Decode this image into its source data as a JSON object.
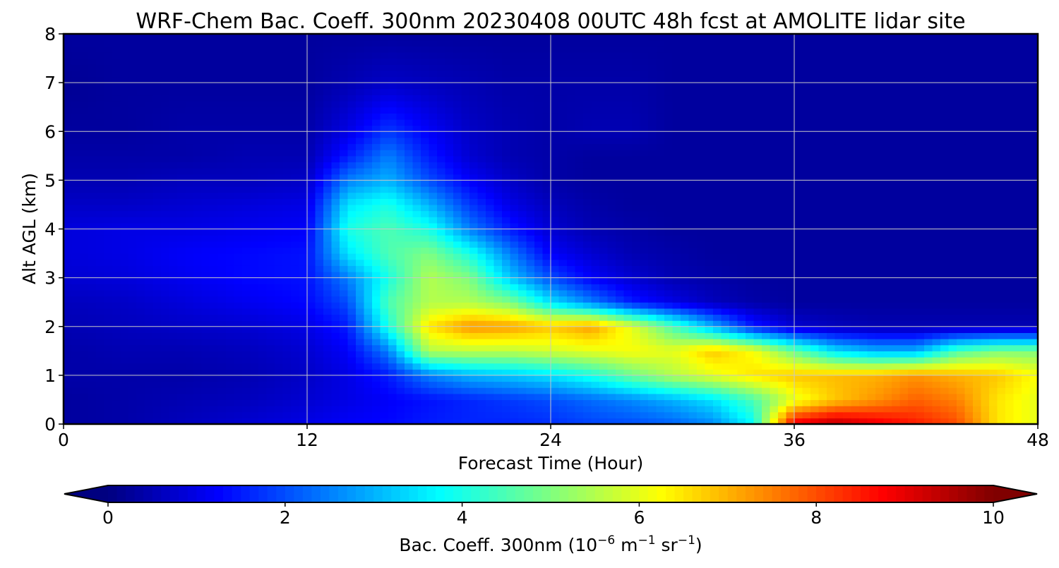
{
  "chart_data": {
    "type": "heatmap",
    "title": "WRF-Chem Bac. Coeff. 300nm  20230408 00UTC 48h fcst at AMOLITE lidar site",
    "xlabel": "Forecast Time (Hour)",
    "ylabel": "Alt AGL (km)",
    "xlim": [
      0,
      48
    ],
    "ylim": [
      0,
      8
    ],
    "x_ticks": [
      "0",
      "12",
      "24",
      "36",
      "48"
    ],
    "y_ticks": [
      "0",
      "1",
      "2",
      "3",
      "4",
      "5",
      "6",
      "7",
      "8"
    ],
    "grid": true,
    "colorbar": {
      "label_main": "Bac. Coeff. 300nm  (10",
      "label_exp1": "−6",
      "label_mid": " m",
      "label_exp2": "−1",
      "label_mid2": " sr",
      "label_exp3": "−1",
      "label_end": ")",
      "range": [
        0,
        10
      ],
      "ticks": [
        "0",
        "2",
        "4",
        "6",
        "8",
        "10"
      ],
      "colormap": "jet",
      "extend": "both"
    },
    "x": [
      0,
      3,
      6,
      9,
      12,
      14,
      16,
      18,
      20,
      22,
      24,
      26,
      28,
      30,
      32,
      34,
      36,
      38,
      40,
      42,
      44,
      46,
      48
    ],
    "y": [
      0,
      0.5,
      1,
      1.5,
      2,
      2.5,
      3,
      3.5,
      4,
      4.5,
      5,
      5.5,
      6,
      7,
      8
    ],
    "values": [
      [
        0.3,
        0.4,
        0.6,
        0.8,
        1.0,
        1.2,
        1.3,
        1.5,
        1.6,
        1.6,
        1.7,
        1.9,
        2.0,
        2.2,
        2.6,
        3.8,
        9.0,
        9.5,
        9.0,
        8.5,
        8.0,
        6.5,
        6.0
      ],
      [
        0.3,
        0.4,
        0.5,
        0.6,
        0.8,
        1.0,
        1.2,
        1.4,
        1.6,
        1.8,
        2.0,
        2.3,
        2.6,
        3.0,
        3.5,
        4.5,
        6.0,
        6.8,
        7.3,
        7.8,
        7.5,
        6.5,
        6.0
      ],
      [
        0.4,
        0.4,
        0.4,
        0.5,
        0.7,
        1.0,
        1.5,
        2.5,
        3.0,
        3.2,
        3.5,
        4.0,
        4.8,
        5.5,
        6.0,
        6.5,
        6.8,
        6.9,
        7.0,
        7.3,
        7.0,
        6.8,
        6.2
      ],
      [
        0.4,
        0.5,
        0.5,
        0.6,
        0.8,
        1.2,
        2.5,
        5.5,
        5.6,
        5.6,
        5.8,
        6.0,
        6.2,
        6.0,
        6.8,
        6.2,
        4.8,
        3.5,
        3.0,
        3.0,
        4.5,
        5.0,
        5.0
      ],
      [
        0.5,
        0.6,
        0.7,
        0.8,
        1.0,
        1.5,
        4.0,
        6.5,
        7.3,
        7.2,
        6.8,
        7.2,
        6.0,
        4.5,
        3.0,
        1.5,
        0.8,
        0.6,
        0.5,
        0.5,
        0.5,
        0.5,
        0.5
      ],
      [
        0.6,
        0.7,
        0.9,
        1.1,
        1.3,
        2.0,
        4.5,
        5.5,
        5.5,
        5.0,
        3.5,
        2.5,
        1.5,
        1.0,
        0.6,
        0.4,
        0.3,
        0.3,
        0.3,
        0.3,
        0.3,
        0.3,
        0.3
      ],
      [
        0.8,
        0.9,
        1.1,
        1.3,
        1.4,
        2.5,
        4.0,
        5.5,
        5.0,
        3.2,
        2.0,
        1.2,
        0.8,
        0.5,
        0.4,
        0.3,
        0.3,
        0.3,
        0.3,
        0.3,
        0.3,
        0.3,
        0.3
      ],
      [
        0.9,
        1.0,
        1.2,
        1.3,
        1.4,
        3.5,
        4.5,
        5.0,
        4.0,
        2.5,
        1.2,
        0.8,
        0.5,
        0.4,
        0.3,
        0.3,
        0.3,
        0.3,
        0.3,
        0.3,
        0.3,
        0.3,
        0.3
      ],
      [
        0.9,
        1.0,
        1.0,
        1.1,
        1.2,
        4.0,
        4.5,
        4.0,
        2.5,
        1.5,
        0.8,
        0.5,
        0.4,
        0.3,
        0.3,
        0.3,
        0.3,
        0.3,
        0.3,
        0.3,
        0.3,
        0.3,
        0.3
      ],
      [
        0.7,
        0.7,
        0.8,
        0.9,
        1.0,
        3.5,
        4.0,
        3.0,
        1.8,
        1.0,
        0.6,
        0.4,
        0.3,
        0.3,
        0.3,
        0.3,
        0.3,
        0.3,
        0.3,
        0.3,
        0.3,
        0.3,
        0.3
      ],
      [
        0.5,
        0.5,
        0.6,
        0.6,
        0.7,
        2.5,
        3.0,
        2.0,
        1.2,
        0.7,
        0.4,
        0.3,
        0.3,
        0.3,
        0.3,
        0.3,
        0.3,
        0.3,
        0.3,
        0.3,
        0.3,
        0.3,
        0.3
      ],
      [
        0.4,
        0.4,
        0.4,
        0.5,
        0.5,
        1.5,
        2.5,
        1.5,
        0.8,
        0.5,
        0.4,
        0.3,
        0.3,
        0.3,
        0.3,
        0.3,
        0.3,
        0.3,
        0.3,
        0.3,
        0.3,
        0.3,
        0.3
      ],
      [
        0.3,
        0.3,
        0.4,
        0.4,
        0.4,
        1.0,
        1.8,
        1.2,
        0.7,
        0.5,
        0.4,
        0.5,
        0.5,
        0.3,
        0.3,
        0.3,
        0.3,
        0.3,
        0.3,
        0.3,
        0.3,
        0.3,
        0.3
      ],
      [
        0.2,
        0.3,
        0.3,
        0.3,
        0.3,
        0.5,
        0.7,
        0.6,
        0.5,
        0.4,
        0.4,
        0.4,
        0.4,
        0.3,
        0.3,
        0.3,
        0.3,
        0.3,
        0.3,
        0.3,
        0.3,
        0.3,
        0.3
      ],
      [
        0.3,
        0.3,
        0.3,
        0.3,
        0.3,
        0.3,
        0.3,
        0.3,
        0.3,
        0.3,
        0.3,
        0.3,
        0.3,
        0.3,
        0.3,
        0.3,
        0.3,
        0.3,
        0.3,
        0.3,
        0.3,
        0.3,
        0.3
      ]
    ]
  }
}
